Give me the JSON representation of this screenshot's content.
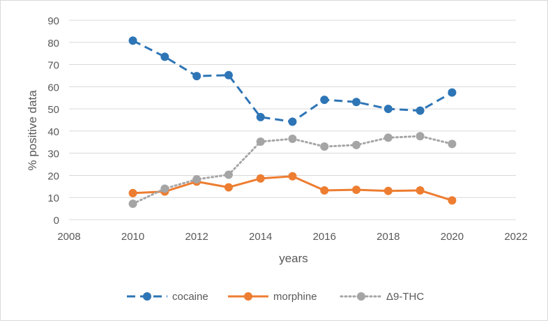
{
  "chart_data": {
    "type": "line",
    "title": "",
    "xlabel": "years",
    "ylabel": "% positive data",
    "xlim": [
      2008,
      2022
    ],
    "ylim": [
      0,
      90
    ],
    "xticks": [
      "2008",
      "2010",
      "2012",
      "2014",
      "2016",
      "2018",
      "2020",
      "2022"
    ],
    "yticks": [
      "0",
      "10",
      "20",
      "30",
      "40",
      "50",
      "60",
      "70",
      "80",
      "90"
    ],
    "grid": "horizontal",
    "legend_position": "bottom",
    "x": [
      2010,
      2011,
      2012,
      2013,
      2014,
      2015,
      2016,
      2017,
      2018,
      2019,
      2020
    ],
    "series": [
      {
        "name": "cocaine",
        "color": "#2e75b6",
        "style": "dashed",
        "values": [
          80.8,
          73.5,
          64.8,
          65.2,
          46.3,
          44.2,
          54.1,
          53.1,
          50.0,
          49.2,
          57.4
        ]
      },
      {
        "name": "morphine",
        "color": "#ed7d31",
        "style": "solid",
        "values": [
          12.0,
          12.7,
          17.2,
          14.6,
          18.6,
          19.6,
          13.2,
          13.5,
          13.0,
          13.2,
          8.7
        ]
      },
      {
        "name": "Δ9-THC",
        "color": "#a5a5a5",
        "style": "dotted",
        "values": [
          7.2,
          14.0,
          18.2,
          20.3,
          35.2,
          36.5,
          33.0,
          33.7,
          37.0,
          37.7,
          34.2
        ]
      }
    ]
  }
}
